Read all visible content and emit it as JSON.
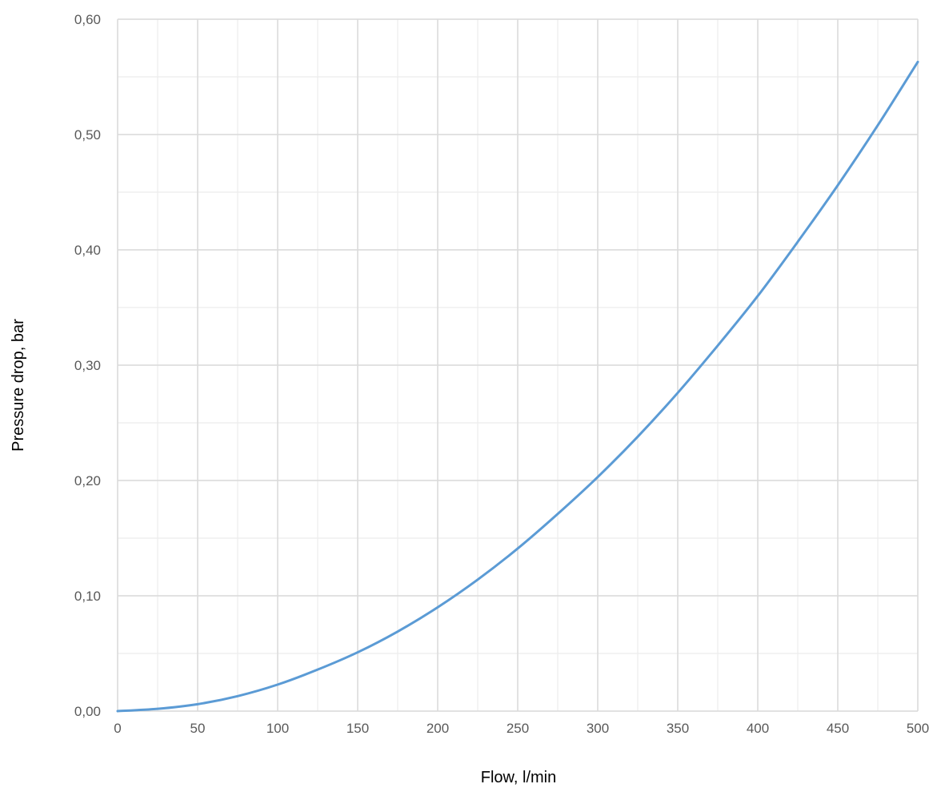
{
  "chart_data": {
    "type": "line",
    "title": "",
    "xlabel": "Flow, l/min",
    "ylabel": "Pressure drop, bar",
    "xlim": [
      0,
      500
    ],
    "ylim": [
      0,
      0.6
    ],
    "x_ticks": [
      "0",
      "50",
      "100",
      "150",
      "200",
      "250",
      "300",
      "350",
      "400",
      "450",
      "500"
    ],
    "y_ticks": [
      "0,00",
      "0,10",
      "0,20",
      "0,30",
      "0,40",
      "0,50",
      "0,60"
    ],
    "grid": true,
    "legend": "none",
    "series": [
      {
        "color": "#5b9bd5",
        "x": [
          0,
          25,
          50,
          75,
          100,
          125,
          150,
          175,
          200,
          225,
          250,
          275,
          300,
          325,
          350,
          375,
          400,
          425,
          450,
          475,
          500
        ],
        "y": [
          0.0,
          0.002,
          0.006,
          0.013,
          0.023,
          0.036,
          0.051,
          0.069,
          0.09,
          0.114,
          0.141,
          0.171,
          0.203,
          0.238,
          0.276,
          0.317,
          0.36,
          0.407,
          0.456,
          0.508,
          0.563
        ]
      }
    ]
  }
}
